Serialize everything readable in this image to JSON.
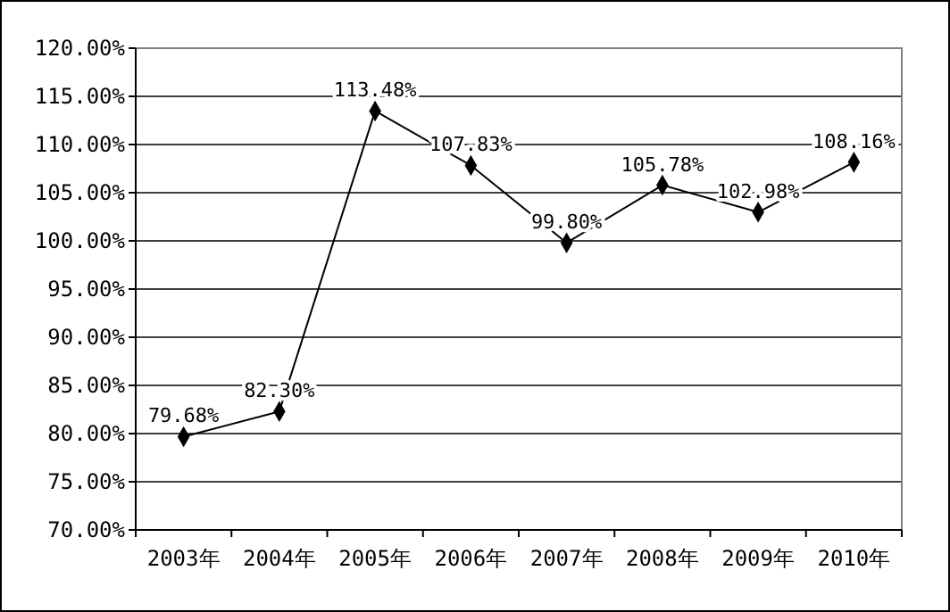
{
  "chart_data": {
    "type": "line",
    "categories": [
      "2003年",
      "2004年",
      "2005年",
      "2006年",
      "2007年",
      "2008年",
      "2009年",
      "2010年"
    ],
    "series": [
      {
        "color": "#000000",
        "values": [
          79.68,
          82.3,
          113.48,
          107.83,
          99.8,
          105.78,
          102.98,
          108.16
        ],
        "value_labels": [
          "79.68%",
          "82.30%",
          "113.48%",
          "107.83%",
          "99.80%",
          "105.78%",
          "102.98%",
          "108.16%"
        ]
      }
    ],
    "ylim": [
      70,
      120
    ],
    "yticks": [
      {
        "value": 70,
        "label": "70.00%"
      },
      {
        "value": 75,
        "label": "75.00%"
      },
      {
        "value": 80,
        "label": "80.00%"
      },
      {
        "value": 85,
        "label": "85.00%"
      },
      {
        "value": 90,
        "label": "90.00%"
      },
      {
        "value": 95,
        "label": "95.00%"
      },
      {
        "value": 100,
        "label": "100.00%"
      },
      {
        "value": 105,
        "label": "105.00%"
      },
      {
        "value": 110,
        "label": "110.00%"
      },
      {
        "value": 115,
        "label": "115.00%"
      },
      {
        "value": 120,
        "label": "120.00%"
      }
    ],
    "grid": "y",
    "marker": "diamond",
    "line_style": "solid"
  }
}
